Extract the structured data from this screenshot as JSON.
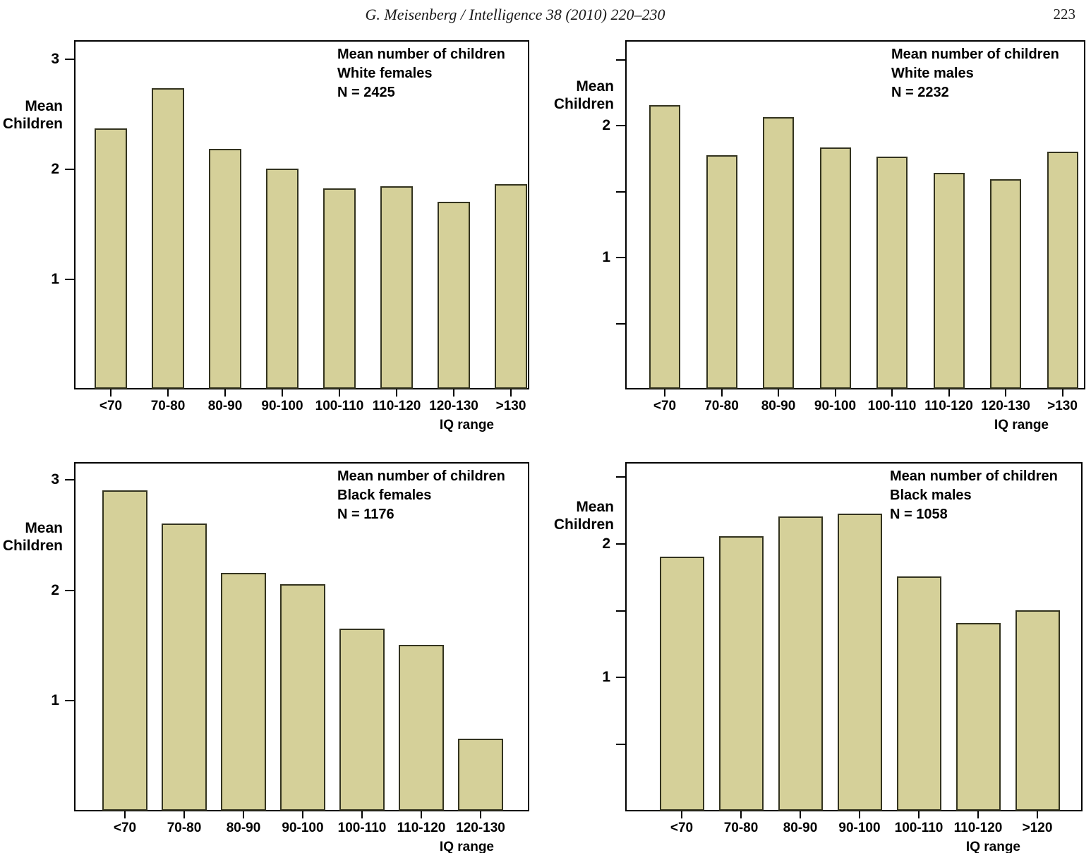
{
  "page": {
    "header": "G. Meisenberg / Intelligence 38 (2010) 220–230",
    "page_number": "223"
  },
  "chart_data": [
    {
      "type": "bar",
      "title": "Mean number of children",
      "subtitle": "White females",
      "n_label": "N = 2425",
      "categories": [
        "<70",
        "70-80",
        "80-90",
        "90-100",
        "100-110",
        "110-120",
        "120-130",
        ">130"
      ],
      "values": [
        2.36,
        2.73,
        2.18,
        2.0,
        1.82,
        1.84,
        1.7,
        1.86
      ],
      "ylabel": "Mean\nChildren",
      "xlabel": "IQ range",
      "ylim": [
        0,
        3.17
      ],
      "yticks": [
        {
          "value": 1,
          "label": "1"
        },
        {
          "value": 2,
          "label": "2"
        },
        {
          "value": 3,
          "label": "3"
        }
      ],
      "grid": "off",
      "legend": "none",
      "bar_color": "#d5d099",
      "bar_border": "#33331f"
    },
    {
      "type": "bar",
      "title": "Mean number of children",
      "subtitle": "White males",
      "n_label": "N = 2232",
      "categories": [
        "<70",
        "70-80",
        "80-90",
        "90-100",
        "100-110",
        "110-120",
        "120-130",
        ">130"
      ],
      "values": [
        2.15,
        1.77,
        2.06,
        1.83,
        1.76,
        1.64,
        1.59,
        1.8
      ],
      "ylabel": "Mean\nChildren",
      "xlabel": "IQ range",
      "ylim": [
        0,
        2.65
      ],
      "yticks": [
        {
          "value": 0.5,
          "label": ""
        },
        {
          "value": 1,
          "label": "1"
        },
        {
          "value": 1.5,
          "label": ""
        },
        {
          "value": 2,
          "label": "2"
        },
        {
          "value": 2.5,
          "label": ""
        }
      ],
      "grid": "off",
      "legend": "none",
      "bar_color": "#d5d099",
      "bar_border": "#33331f"
    },
    {
      "type": "bar",
      "title": "Mean number of children",
      "subtitle": "Black females",
      "n_label": "N = 1176",
      "categories": [
        "<70",
        "70-80",
        "80-90",
        "90-100",
        "100-110",
        "110-120",
        "120-130"
      ],
      "values": [
        2.9,
        2.6,
        2.15,
        2.05,
        1.65,
        1.5,
        0.65
      ],
      "ylabel": "Mean\nChildren",
      "xlabel": "IQ range",
      "ylim": [
        0,
        3.16
      ],
      "yticks": [
        {
          "value": 1,
          "label": "1"
        },
        {
          "value": 2,
          "label": "2"
        },
        {
          "value": 3,
          "label": "3"
        }
      ],
      "grid": "off",
      "legend": "none",
      "bar_color": "#d5d099",
      "bar_border": "#33331f"
    },
    {
      "type": "bar",
      "title": "Mean number of children",
      "subtitle": "Black males",
      "n_label": "N = 1058",
      "categories": [
        "<70",
        "70-80",
        "80-90",
        "90-100",
        "100-110",
        "110-120",
        ">120"
      ],
      "values": [
        1.9,
        2.05,
        2.2,
        2.22,
        1.75,
        1.4,
        1.5
      ],
      "ylabel": "Mean\nChildren",
      "xlabel": "IQ range",
      "ylim": [
        0,
        2.61
      ],
      "yticks": [
        {
          "value": 0.5,
          "label": ""
        },
        {
          "value": 1,
          "label": "1"
        },
        {
          "value": 1.5,
          "label": ""
        },
        {
          "value": 2,
          "label": "2"
        },
        {
          "value": 2.5,
          "label": ""
        }
      ],
      "grid": "off",
      "legend": "none",
      "bar_color": "#d5d099",
      "bar_border": "#33331f"
    }
  ]
}
